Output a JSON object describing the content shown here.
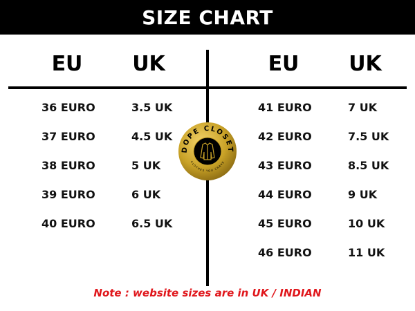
{
  "title": "SIZE CHART",
  "left": {
    "headers": [
      "EU",
      "UK"
    ],
    "rows": [
      [
        "36 EURO",
        "3.5 UK"
      ],
      [
        "37 EURO",
        "4.5 UK"
      ],
      [
        "38 EURO",
        "5 UK"
      ],
      [
        "39 EURO",
        "6 UK"
      ],
      [
        "40 EURO",
        "6.5 UK"
      ]
    ]
  },
  "right": {
    "headers": [
      "EU",
      "UK"
    ],
    "rows": [
      [
        "41 EURO",
        "7 UK"
      ],
      [
        "42 EURO",
        "7.5 UK"
      ],
      [
        "43 EURO",
        "8.5 UK"
      ],
      [
        "44 EURO",
        "9 UK"
      ],
      [
        "45 EURO",
        "10 UK"
      ],
      [
        "46 EURO",
        "11 UK"
      ]
    ]
  },
  "logo": {
    "name": "DOPE CLOSET",
    "tagline": "CLOTHES YOU CRAVE",
    "icon": "jacket-icon",
    "colors": {
      "gold": "#c9a227",
      "black": "#000000"
    }
  },
  "note": "Note : website sizes are in UK / INDIAN",
  "colors": {
    "note": "#e0161b",
    "header_bg": "#000000"
  }
}
